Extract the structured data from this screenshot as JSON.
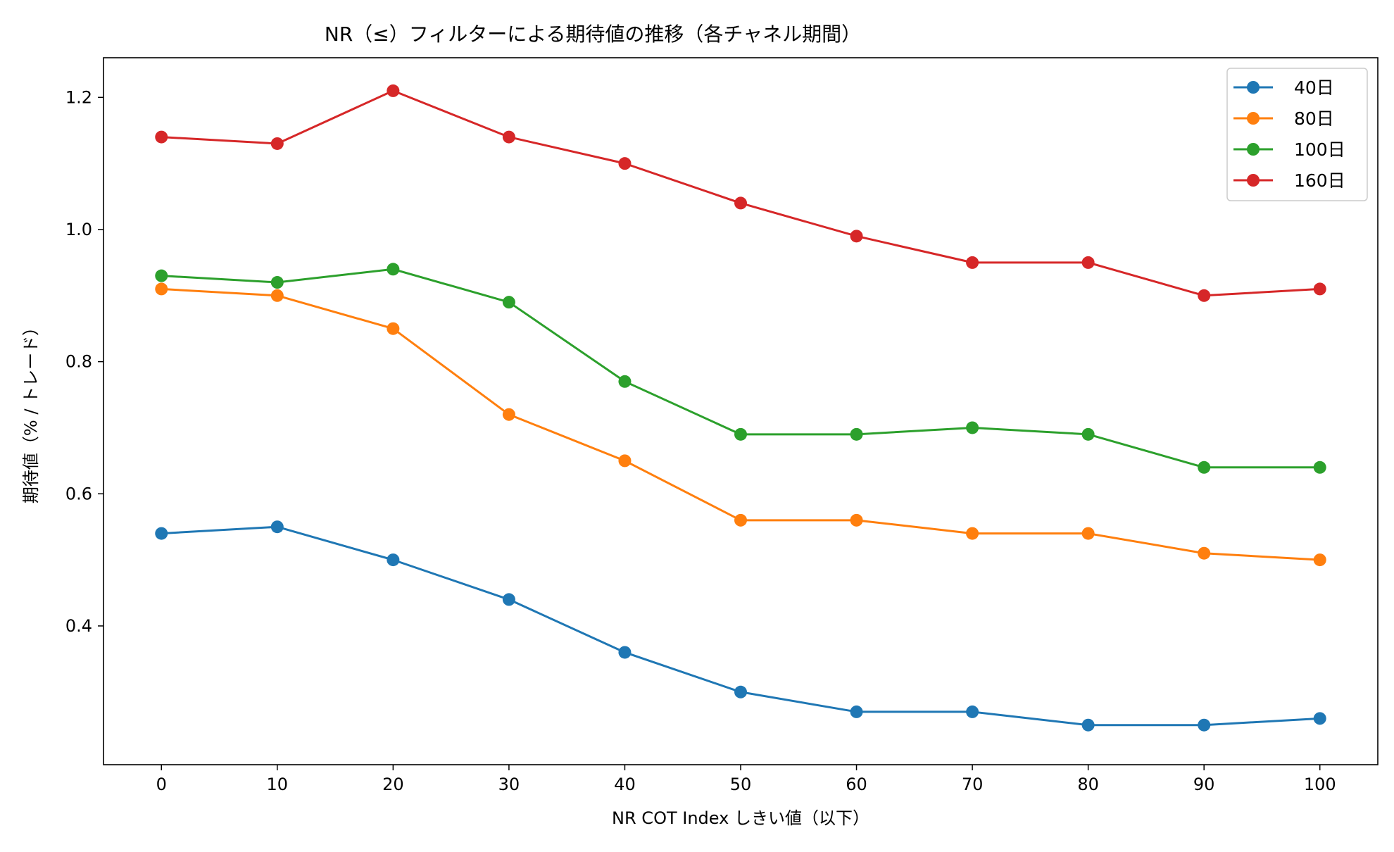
{
  "chart_data": {
    "type": "line",
    "title": "NR（≤）フィルターによる期待値の推移（各チャネル期間）",
    "xlabel": "NR COT Index しきい値（以下）",
    "ylabel": "期待値（% / トレード）",
    "x": [
      0,
      10,
      20,
      30,
      40,
      50,
      60,
      70,
      80,
      90,
      100
    ],
    "x_ticks": [
      "0",
      "10",
      "20",
      "30",
      "40",
      "50",
      "60",
      "70",
      "80",
      "90",
      "100"
    ],
    "y_ticks": [
      "0.4",
      "0.6",
      "0.8",
      "1.0",
      "1.2"
    ],
    "y_tick_values": [
      0.4,
      0.6,
      0.8,
      1.0,
      1.2
    ],
    "xlim": [
      -5,
      105
    ],
    "ylim": [
      0.19,
      1.26
    ],
    "grid": false,
    "legend_position": "top-right",
    "series": [
      {
        "name": "40日",
        "color": "#1f77b4",
        "values": [
          0.54,
          0.55,
          0.5,
          0.44,
          0.36,
          0.3,
          0.27,
          0.27,
          0.25,
          0.25,
          0.26
        ]
      },
      {
        "name": "80日",
        "color": "#ff7f0e",
        "values": [
          0.91,
          0.9,
          0.85,
          0.72,
          0.65,
          0.56,
          0.56,
          0.54,
          0.54,
          0.51,
          0.5
        ]
      },
      {
        "name": "100日",
        "color": "#2ca02c",
        "values": [
          0.93,
          0.92,
          0.94,
          0.89,
          0.77,
          0.69,
          0.69,
          0.7,
          0.69,
          0.64,
          0.64
        ]
      },
      {
        "name": "160日",
        "color": "#d62728",
        "values": [
          1.14,
          1.13,
          1.21,
          1.14,
          1.1,
          1.04,
          0.99,
          0.95,
          0.95,
          0.9,
          0.91
        ]
      }
    ]
  }
}
